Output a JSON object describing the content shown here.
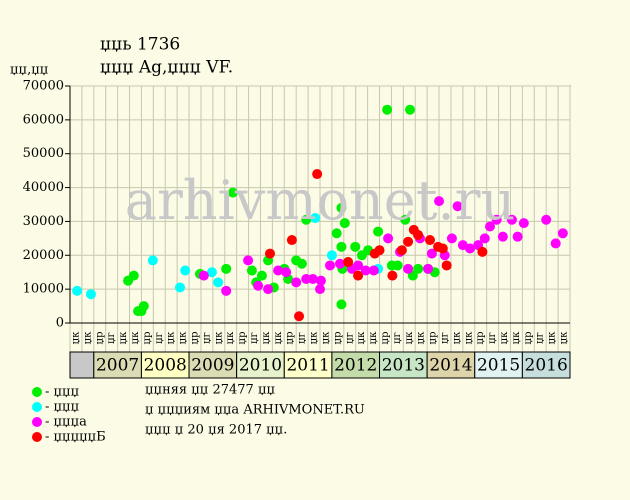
{
  "chart_data": {
    "type": "scatter",
    "title": "џџь 1736",
    "subtitle": "џџџ Ag,џџџ VF.",
    "y_label": "џџ,џџ",
    "watermark": "arhivmonet.ru",
    "xlim": [
      2006.5,
      2017.0
    ],
    "ylim": [
      0,
      70000
    ],
    "yticks": [
      0,
      10000,
      20000,
      30000,
      40000,
      50000,
      60000,
      70000
    ],
    "grid": true,
    "quarter_labels": [
      "џк",
      "џк",
      "џр",
      "џг",
      "џк",
      "џк",
      "џр",
      "џг",
      "џк",
      "џк",
      "џр",
      "џг",
      "џк",
      "џк",
      "џр",
      "џг",
      "џк",
      "џк",
      "џр",
      "џг",
      "џк",
      "џк",
      "џр",
      "џг",
      "џк",
      "џк",
      "џр",
      "џг",
      "џк",
      "џк",
      "џр",
      "џг",
      "џк",
      "џк",
      "џр",
      "џг",
      "џк",
      "џк",
      "џр",
      "џг",
      "џк",
      "џк"
    ],
    "years": [
      {
        "label": "2007",
        "color": "#dcdcb4"
      },
      {
        "label": "2008",
        "color": "#ffffc4"
      },
      {
        "label": "2009",
        "color": "#dcdcb4"
      },
      {
        "label": "2010",
        "color": "#e6f2cc"
      },
      {
        "label": "2011",
        "color": "#ffffcc"
      },
      {
        "label": "2012",
        "color": "#c4dcaa"
      },
      {
        "label": "2013",
        "color": "#c6e6c6"
      },
      {
        "label": "2014",
        "color": "#ddd4aa"
      },
      {
        "label": "2015",
        "color": "#e0f2f2"
      },
      {
        "label": "2016",
        "color": "#c6dede"
      }
    ],
    "series": [
      {
        "name": "- џџџ",
        "color": "#00ee00",
        "x": [
          2007.72,
          2007.84,
          2007.93,
          2008.05,
          2008.0,
          2009.23,
          2009.78,
          2009.92,
          2010.32,
          2010.41,
          2010.53,
          2010.66,
          2010.78,
          2011.0,
          2011.08,
          2011.25,
          2011.37,
          2011.46,
          2012.1,
          2012.2,
          2012.27,
          2012.2,
          2012.22,
          2012.2,
          2012.34,
          2012.49,
          2012.63,
          2012.76,
          2012.97,
          2013.16,
          2013.26,
          2013.38,
          2013.54,
          2013.64,
          2013.7,
          2013.81,
          2014.02,
          2014.16
        ],
        "values": [
          12500,
          14000,
          3500,
          5000,
          3500,
          14500,
          16000,
          38500,
          15500,
          12000,
          14000,
          18500,
          10500,
          16000,
          13000,
          18500,
          17500,
          30500,
          26500,
          34000,
          29500,
          22500,
          16000,
          5500,
          18000,
          22500,
          20000,
          21500,
          27000,
          63000,
          17000,
          17000,
          30500,
          63000,
          14000,
          16000,
          16000,
          15000
        ]
      },
      {
        "name": "- џџџ",
        "color": "#00ffff",
        "x": [
          2006.65,
          2006.94,
          2008.24,
          2008.81,
          2008.92,
          2009.48,
          2009.61,
          2011.65,
          2012.0,
          2012.97
        ],
        "values": [
          9500,
          8500,
          18500,
          10500,
          15500,
          15000,
          12000,
          31000,
          20000,
          16000
        ]
      },
      {
        "name": "- џџџа",
        "color": "#ff00ff",
        "x": [
          2009.31,
          2009.78,
          2010.24,
          2010.45,
          2010.66,
          2010.87,
          2011.04,
          2011.25,
          2011.46,
          2011.6,
          2011.77,
          2011.75,
          2011.96,
          2012.17,
          2012.42,
          2012.55,
          2012.71,
          2012.88,
          2013.18,
          2013.43,
          2013.6,
          2013.85,
          2014.02,
          2014.1,
          2014.25,
          2014.37,
          2014.52,
          2014.64,
          2014.75,
          2014.9,
          2015.07,
          2015.21,
          2015.32,
          2015.46,
          2015.59,
          2015.78,
          2015.9,
          2016.03,
          2016.5,
          2016.7,
          2016.85
        ],
        "values": [
          14000,
          9500,
          18500,
          11000,
          10000,
          15500,
          15000,
          12000,
          13000,
          13000,
          12500,
          10000,
          17000,
          17500,
          16000,
          17000,
          15500,
          15500,
          25000,
          21000,
          16000,
          25000,
          16000,
          20500,
          36000,
          20000,
          25000,
          34500,
          23000,
          22000,
          23000,
          25000,
          28500,
          30500,
          25500,
          30500,
          25500,
          29500,
          30500,
          23500,
          26500
        ]
      },
      {
        "name": "- џџџџџБ",
        "color": "#ff0000",
        "x": [
          2010.7,
          2011.16,
          2011.31,
          2011.69,
          2012.34,
          2012.55,
          2012.9,
          2013.0,
          2013.27,
          2013.47,
          2013.6,
          2013.72,
          2013.81,
          2014.06,
          2014.23,
          2014.33,
          2014.41,
          2015.16
        ],
        "values": [
          20500,
          24500,
          2000,
          44000,
          18000,
          14000,
          20500,
          21500,
          14000,
          21500,
          24000,
          27500,
          26000,
          24500,
          22500,
          22000,
          17000,
          21000
        ]
      }
    ],
    "notes": [
      "џџняя џџ 27477 џџ",
      "џ џџџиям џџа ARHIVMONET.RU",
      "џџџ џ 20 џя 2017 џџ."
    ]
  }
}
